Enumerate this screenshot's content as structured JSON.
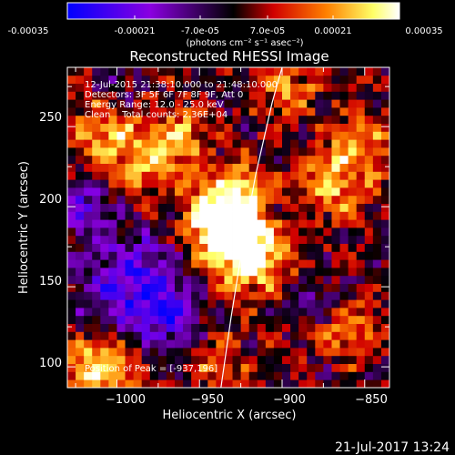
{
  "chart_data": {
    "type": "heatmap",
    "title": "Reconstructed RHESSI Image",
    "colorbar": {
      "ticks": [
        "-0.00035",
        "-0.00021",
        "-7.0e-05",
        "7.0e-05",
        "0.00021",
        "0.00035"
      ],
      "range": [
        -0.00035,
        0.00035
      ],
      "unit_label": "(photons cm⁻² s⁻¹ asec⁻²)",
      "colormap": [
        "#0000ff",
        "#8a00e0",
        "#000000",
        "#d00000",
        "#ff8000",
        "#ffff66",
        "#ffffff"
      ]
    },
    "xlabel": "Heliocentric X (arcsec)",
    "ylabel": "Heliocentric Y (arcsec)",
    "x_ticks": [
      -1000,
      -950,
      -900,
      -850
    ],
    "x_tick_labels": [
      "−1000",
      "−950",
      "−900",
      "−850"
    ],
    "y_ticks": [
      100,
      150,
      200,
      250
    ],
    "y_tick_labels": [
      "100",
      "150",
      "200",
      "250"
    ],
    "xlim": [
      -1030,
      -835
    ],
    "ylim": [
      87,
      287
    ],
    "annotations": [
      "12-Jul-2015 21:38:10.000 to 21:48:10.000",
      "Detectors: 3F 5F 6F 7F 8F 9F, Att 0",
      "Energy Range: 12.0 - 25.0 keV",
      "Clean    Total counts: 2.36E+04"
    ],
    "peak_label": "Position of Peak = [-937,196]",
    "peak": {
      "x": -937,
      "y": 196
    },
    "limb_curve": [
      {
        "x": -937,
        "y": 87
      },
      {
        "x": -931,
        "y": 130
      },
      {
        "x": -924,
        "y": 175
      },
      {
        "x": -916,
        "y": 220
      },
      {
        "x": -906,
        "y": 265
      },
      {
        "x": -900,
        "y": 287
      }
    ],
    "sources": [
      {
        "x": -937,
        "y": 196,
        "w": 1.0,
        "s": 14
      },
      {
        "x": -930,
        "y": 180,
        "w": 0.8,
        "s": 16
      },
      {
        "x": -915,
        "y": 165,
        "w": 0.7,
        "s": 14
      },
      {
        "x": -925,
        "y": 215,
        "w": 0.5,
        "s": 10
      },
      {
        "x": -1010,
        "y": 100,
        "w": 0.85,
        "s": 14
      },
      {
        "x": -985,
        "y": 230,
        "w": 0.6,
        "s": 16
      },
      {
        "x": -1010,
        "y": 250,
        "w": 0.5,
        "s": 14
      },
      {
        "x": -870,
        "y": 215,
        "w": 0.6,
        "s": 14
      },
      {
        "x": -850,
        "y": 240,
        "w": 0.5,
        "s": 14
      },
      {
        "x": -862,
        "y": 125,
        "w": 0.5,
        "s": 12
      },
      {
        "x": -895,
        "y": 275,
        "w": 0.45,
        "s": 14
      },
      {
        "x": -958,
        "y": 245,
        "w": 0.45,
        "s": 12
      },
      {
        "x": -938,
        "y": 105,
        "w": 0.5,
        "s": 10
      }
    ],
    "sinks": [
      {
        "x": -990,
        "y": 150,
        "w": 0.8,
        "s": 22
      },
      {
        "x": -1020,
        "y": 200,
        "w": 0.5,
        "s": 14
      },
      {
        "x": -965,
        "y": 130,
        "w": 0.4,
        "s": 14
      },
      {
        "x": -880,
        "y": 140,
        "w": 0.3,
        "s": 12
      },
      {
        "x": -1000,
        "y": 275,
        "w": 0.3,
        "s": 10
      }
    ]
  },
  "footer": {
    "timestamp": "21-Jul-2017 13:24"
  }
}
